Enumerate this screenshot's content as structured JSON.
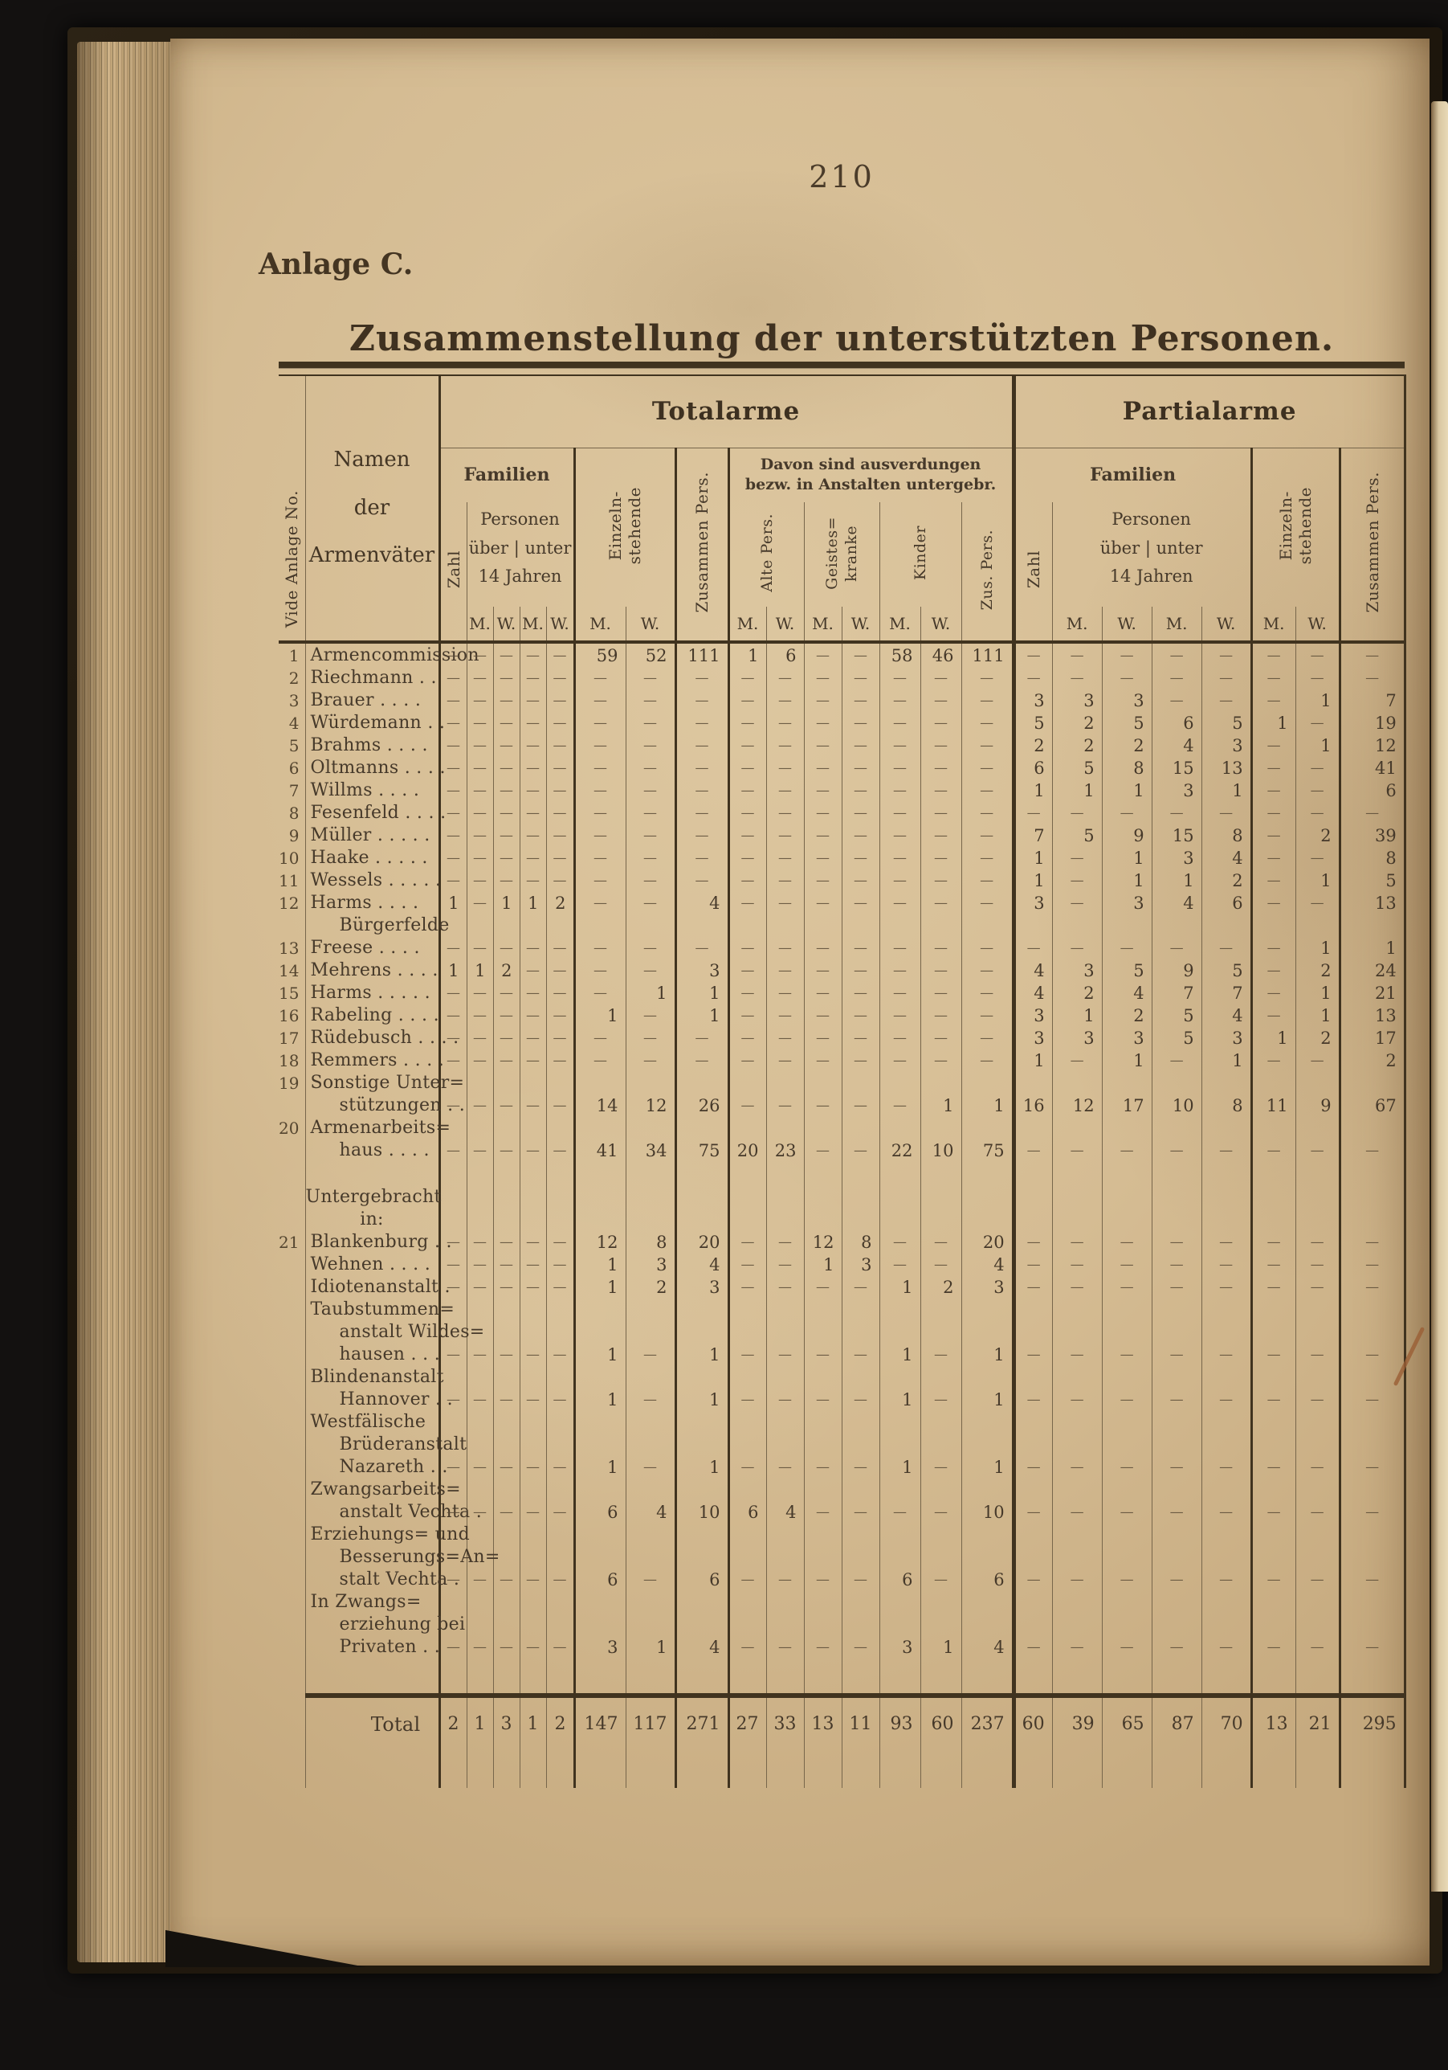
{
  "colors": {
    "paper": "#d6bd94",
    "ink": "#46392a",
    "rule_thick": "#40331f",
    "rule_thin": "#77664b",
    "background": "#131110"
  },
  "page": {
    "number": "210",
    "annex_label": "Anlage C.",
    "title": "Zusammenstellung der unterstützten Personen."
  },
  "table": {
    "headers": {
      "vide": "Vide Anlage No.",
      "namen": "Namen\nder\nArmenväter",
      "totalarme": "Totalarme",
      "partialarme": "Partialarme",
      "familien": "Familien",
      "zahl": "Zahl",
      "personen_block": "Personen\nüber | unter\n14 Jahren",
      "einzeln": "Einzeln-\nstehende",
      "zusammen": "Zusammen Pers.",
      "davon": "Davon sind ausverdungen\nbezw. in Anstalten untergebr.",
      "alte": "Alte Pers.",
      "geistes": "Geistes=\nkranke",
      "kinder": "Kinder",
      "zus_pers": "Zus. Pers.",
      "m": "M.",
      "w": "W."
    },
    "rows": [
      {
        "no": "1",
        "name": "Armencommission",
        "cells": [
          "—",
          "—",
          "—",
          "—",
          "—",
          "59",
          "52",
          "111",
          "1",
          "6",
          "—",
          "—",
          "58",
          "46",
          "111",
          "—",
          "—",
          "—",
          "—",
          "—",
          "—",
          "—",
          "—"
        ]
      },
      {
        "no": "2",
        "name": "Riechmann . .",
        "cells": [
          "—",
          "—",
          "—",
          "—",
          "—",
          "—",
          "—",
          "—",
          "—",
          "—",
          "—",
          "—",
          "—",
          "—",
          "—",
          "—",
          "—",
          "—",
          "—",
          "—",
          "—",
          "—",
          "—"
        ]
      },
      {
        "no": "3",
        "name": "Brauer . . . .",
        "cells": [
          "—",
          "—",
          "—",
          "—",
          "—",
          "—",
          "—",
          "—",
          "—",
          "—",
          "—",
          "—",
          "—",
          "—",
          "—",
          "3",
          "3",
          "3",
          "—",
          "—",
          "—",
          "1",
          "7"
        ]
      },
      {
        "no": "4",
        "name": "Würdemann . .",
        "cells": [
          "—",
          "—",
          "—",
          "—",
          "—",
          "—",
          "—",
          "—",
          "—",
          "—",
          "—",
          "—",
          "—",
          "—",
          "—",
          "5",
          "2",
          "5",
          "6",
          "5",
          "1",
          "—",
          "19"
        ]
      },
      {
        "no": "5",
        "name": "Brahms . . . .",
        "cells": [
          "—",
          "—",
          "—",
          "—",
          "—",
          "—",
          "—",
          "—",
          "—",
          "—",
          "—",
          "—",
          "—",
          "—",
          "—",
          "2",
          "2",
          "2",
          "4",
          "3",
          "—",
          "1",
          "12"
        ]
      },
      {
        "no": "6",
        "name": "Oltmanns . . . .",
        "cells": [
          "—",
          "—",
          "—",
          "—",
          "—",
          "—",
          "—",
          "—",
          "—",
          "—",
          "—",
          "—",
          "—",
          "—",
          "—",
          "6",
          "5",
          "8",
          "15",
          "13",
          "—",
          "—",
          "41"
        ]
      },
      {
        "no": "7",
        "name": "Willms . . . .",
        "cells": [
          "—",
          "—",
          "—",
          "—",
          "—",
          "—",
          "—",
          "—",
          "—",
          "—",
          "—",
          "—",
          "—",
          "—",
          "—",
          "1",
          "1",
          "1",
          "3",
          "1",
          "—",
          "—",
          "6"
        ]
      },
      {
        "no": "8",
        "name": "Fesenfeld . . . .",
        "cells": [
          "—",
          "—",
          "—",
          "—",
          "—",
          "—",
          "—",
          "—",
          "—",
          "—",
          "—",
          "—",
          "—",
          "—",
          "—",
          "—",
          "—",
          "—",
          "—",
          "—",
          "—",
          "—",
          "—"
        ]
      },
      {
        "no": "9",
        "name": "Müller . . . . .",
        "cells": [
          "—",
          "—",
          "—",
          "—",
          "—",
          "—",
          "—",
          "—",
          "—",
          "—",
          "—",
          "—",
          "—",
          "—",
          "—",
          "7",
          "5",
          "9",
          "15",
          "8",
          "—",
          "2",
          "39"
        ]
      },
      {
        "no": "10",
        "name": "Haake . . . . .",
        "cells": [
          "—",
          "—",
          "—",
          "—",
          "—",
          "—",
          "—",
          "—",
          "—",
          "—",
          "—",
          "—",
          "—",
          "—",
          "—",
          "1",
          "—",
          "1",
          "3",
          "4",
          "—",
          "—",
          "8"
        ]
      },
      {
        "no": "11",
        "name": "Wessels . . . . .",
        "cells": [
          "—",
          "—",
          "—",
          "—",
          "—",
          "—",
          "—",
          "—",
          "—",
          "—",
          "—",
          "—",
          "—",
          "—",
          "—",
          "1",
          "—",
          "1",
          "1",
          "2",
          "—",
          "1",
          "5"
        ]
      },
      {
        "no": "12",
        "name": "Harms . . . .",
        "cells": [
          "1",
          "—",
          "1",
          "1",
          "2",
          "—",
          "—",
          "4",
          "—",
          "—",
          "—",
          "—",
          "—",
          "—",
          "—",
          "3",
          "—",
          "3",
          "4",
          "6",
          "—",
          "—",
          "13"
        ]
      },
      {
        "no": "",
        "name": "Bürgerfelde",
        "indent": true
      },
      {
        "no": "13",
        "name": "Freese . . . .",
        "cells": [
          "—",
          "—",
          "—",
          "—",
          "—",
          "—",
          "—",
          "—",
          "—",
          "—",
          "—",
          "—",
          "—",
          "—",
          "—",
          "—",
          "—",
          "—",
          "—",
          "—",
          "—",
          "1",
          "1"
        ]
      },
      {
        "no": "14",
        "name": "Mehrens . . . .",
        "cells": [
          "1",
          "1",
          "2",
          "—",
          "—",
          "—",
          "—",
          "3",
          "—",
          "—",
          "—",
          "—",
          "—",
          "—",
          "—",
          "4",
          "3",
          "5",
          "9",
          "5",
          "—",
          "2",
          "24"
        ]
      },
      {
        "no": "15",
        "name": "Harms . . . . .",
        "cells": [
          "—",
          "—",
          "—",
          "—",
          "—",
          "—",
          "1",
          "1",
          "—",
          "—",
          "—",
          "—",
          "—",
          "—",
          "—",
          "4",
          "2",
          "4",
          "7",
          "7",
          "—",
          "1",
          "21"
        ]
      },
      {
        "no": "16",
        "name": "Rabeling . . . .",
        "cells": [
          "—",
          "—",
          "—",
          "—",
          "—",
          "1",
          "—",
          "1",
          "—",
          "—",
          "—",
          "—",
          "—",
          "—",
          "—",
          "3",
          "1",
          "2",
          "5",
          "4",
          "—",
          "1",
          "13"
        ]
      },
      {
        "no": "17",
        "name": "Rüdebusch . . . .",
        "cells": [
          "—",
          "—",
          "—",
          "—",
          "—",
          "—",
          "—",
          "—",
          "—",
          "—",
          "—",
          "—",
          "—",
          "—",
          "—",
          "3",
          "3",
          "3",
          "5",
          "3",
          "1",
          "2",
          "17"
        ]
      },
      {
        "no": "18",
        "name": "Remmers . . . .",
        "cells": [
          "—",
          "—",
          "—",
          "—",
          "—",
          "—",
          "—",
          "—",
          "—",
          "—",
          "—",
          "—",
          "—",
          "—",
          "—",
          "1",
          "—",
          "1",
          "—",
          "1",
          "—",
          "—",
          "2"
        ]
      },
      {
        "no": "19",
        "name": "Sonstige Unter="
      },
      {
        "no": "",
        "name": "stützungen . .",
        "indent": true,
        "cells": [
          "—",
          "—",
          "—",
          "—",
          "—",
          "14",
          "12",
          "26",
          "—",
          "—",
          "—",
          "—",
          "—",
          "1",
          "1",
          "16",
          "12",
          "17",
          "10",
          "8",
          "11",
          "9",
          "67"
        ]
      },
      {
        "no": "20",
        "name": "Armenarbeits="
      },
      {
        "no": "",
        "name": "haus . . . .",
        "indent": true,
        "cells": [
          "—",
          "—",
          "—",
          "—",
          "—",
          "41",
          "34",
          "75",
          "20",
          "23",
          "—",
          "—",
          "22",
          "10",
          "75",
          "—",
          "—",
          "—",
          "—",
          "—",
          "—",
          "—",
          "—"
        ]
      },
      {
        "spacer": "gap"
      },
      {
        "no": "",
        "name": "Untergebracht",
        "center": true
      },
      {
        "no": "",
        "name": "in:",
        "center": true
      },
      {
        "no": "21",
        "name": "Blankenburg . .",
        "cells": [
          "—",
          "—",
          "—",
          "—",
          "—",
          "12",
          "8",
          "20",
          "—",
          "—",
          "12",
          "8",
          "—",
          "—",
          "20",
          "—",
          "—",
          "—",
          "—",
          "—",
          "—",
          "—",
          "—"
        ]
      },
      {
        "no": "",
        "name": "Wehnen . . . .",
        "cells": [
          "—",
          "—",
          "—",
          "—",
          "—",
          "1",
          "3",
          "4",
          "—",
          "—",
          "1",
          "3",
          "—",
          "—",
          "4",
          "—",
          "—",
          "—",
          "—",
          "—",
          "—",
          "—",
          "—"
        ]
      },
      {
        "no": "",
        "name": "Idiotenanstalt .",
        "cells": [
          "—",
          "—",
          "—",
          "—",
          "—",
          "1",
          "2",
          "3",
          "—",
          "—",
          "—",
          "—",
          "1",
          "2",
          "3",
          "—",
          "—",
          "—",
          "—",
          "—",
          "—",
          "—",
          "—"
        ]
      },
      {
        "no": "",
        "name": "Taubstummen="
      },
      {
        "no": "",
        "name": "anstalt Wildes=",
        "indent": true
      },
      {
        "no": "",
        "name": "hausen . . .",
        "indent": true,
        "cells": [
          "—",
          "—",
          "—",
          "—",
          "—",
          "1",
          "—",
          "1",
          "—",
          "—",
          "—",
          "—",
          "1",
          "—",
          "1",
          "—",
          "—",
          "—",
          "—",
          "—",
          "—",
          "—",
          "—"
        ]
      },
      {
        "no": "",
        "name": "Blindenanstalt"
      },
      {
        "no": "",
        "name": "Hannover . .",
        "indent": true,
        "cells": [
          "—",
          "—",
          "—",
          "—",
          "—",
          "1",
          "—",
          "1",
          "—",
          "—",
          "—",
          "—",
          "1",
          "—",
          "1",
          "—",
          "—",
          "—",
          "—",
          "—",
          "—",
          "—",
          "—"
        ]
      },
      {
        "no": "",
        "name": "Westfälische"
      },
      {
        "no": "",
        "name": "Brüderanstalt",
        "indent": true
      },
      {
        "no": "",
        "name": "Nazareth . .",
        "indent": true,
        "cells": [
          "—",
          "—",
          "—",
          "—",
          "—",
          "1",
          "—",
          "1",
          "—",
          "—",
          "—",
          "—",
          "1",
          "—",
          "1",
          "—",
          "—",
          "—",
          "—",
          "—",
          "—",
          "—",
          "—"
        ]
      },
      {
        "no": "",
        "name": "Zwangsarbeits="
      },
      {
        "no": "",
        "name": "anstalt Vechta .",
        "indent": true,
        "cells": [
          "—",
          "—",
          "—",
          "—",
          "—",
          "6",
          "4",
          "10",
          "6",
          "4",
          "—",
          "—",
          "—",
          "—",
          "10",
          "—",
          "—",
          "—",
          "—",
          "—",
          "—",
          "—",
          "—"
        ]
      },
      {
        "no": "",
        "name": "Erziehungs= und"
      },
      {
        "no": "",
        "name": "Besserungs=An=",
        "indent": true
      },
      {
        "no": "",
        "name": "stalt Vechta .",
        "indent": true,
        "cells": [
          "—",
          "—",
          "—",
          "—",
          "—",
          "6",
          "—",
          "6",
          "—",
          "—",
          "—",
          "—",
          "6",
          "—",
          "6",
          "—",
          "—",
          "—",
          "—",
          "—",
          "—",
          "—",
          "—"
        ]
      },
      {
        "no": "",
        "name": "In Zwangs="
      },
      {
        "no": "",
        "name": "erziehung bei",
        "indent": true
      },
      {
        "no": "",
        "name": "Privaten . .",
        "indent": true,
        "cells": [
          "—",
          "—",
          "—",
          "—",
          "—",
          "3",
          "1",
          "4",
          "—",
          "—",
          "—",
          "—",
          "3",
          "1",
          "4",
          "—",
          "—",
          "—",
          "—",
          "—",
          "—",
          "—",
          "—"
        ]
      },
      {
        "spacer": "rule"
      }
    ],
    "total": {
      "label": "Total",
      "cells": [
        "2",
        "1",
        "3",
        "1",
        "2",
        "147",
        "117",
        "271",
        "27",
        "33",
        "13",
        "11",
        "93",
        "60",
        "237",
        "60",
        "39",
        "65",
        "87",
        "70",
        "13",
        "21",
        "295"
      ]
    }
  }
}
